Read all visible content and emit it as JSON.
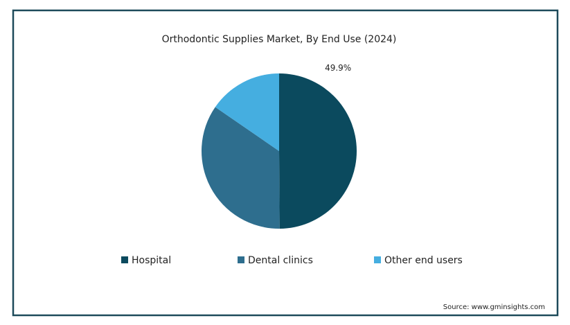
{
  "chart_data": {
    "type": "pie",
    "title": "Orthodontic Supplies Market, By End Use (2024)",
    "categories": [
      "Hospital",
      "Dental clinics",
      "Other end users"
    ],
    "values": [
      49.9,
      34.7,
      15.4
    ],
    "value_labels": [
      "49.9%",
      null,
      null
    ],
    "colors": [
      "#0b4a5e",
      "#2e6e8e",
      "#45aee0"
    ],
    "legend": "bottom",
    "source": "Source: www.gminsights.com"
  }
}
